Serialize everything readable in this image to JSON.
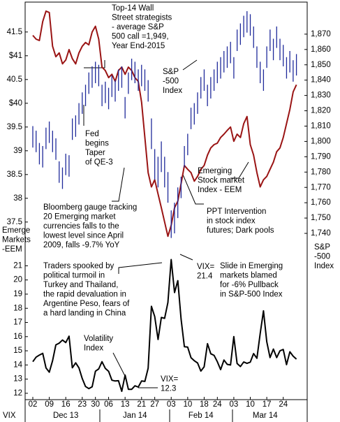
{
  "chart_data": [
    {
      "type": "combo",
      "ylabel": [
        "Emerge",
        "Markets",
        "-EEM"
      ],
      "y2label": [
        "S&P",
        "-500",
        "Index"
      ],
      "ylim": [
        37.1,
        42.1
      ],
      "yticks": [
        37.5,
        38,
        38.5,
        39,
        39.5,
        {
          "value": 40,
          "label": "$40"
        },
        40.5,
        {
          "value": 41,
          "label": "$41"
        },
        41.5
      ],
      "y2lim": [
        1735,
        1890
      ],
      "y2ticks": [
        {
          "value": 1740,
          "label": "1,740"
        },
        {
          "value": 1750,
          "label": "1,750"
        },
        {
          "value": 1760,
          "label": "1,760"
        },
        {
          "value": 1770,
          "label": "1,770"
        },
        {
          "value": 1780,
          "label": "1,780"
        },
        {
          "value": 1790,
          "label": "1,790"
        },
        {
          "value": 1800,
          "label": "1,800"
        },
        {
          "value": 1810,
          "label": "1,810"
        },
        {
          "value": 1820,
          "label": "1,820"
        },
        {
          "value": 1830,
          "label": "1,830"
        },
        {
          "value": 1840,
          "label": "1,840"
        },
        {
          "value": 1850,
          "label": "1,850"
        },
        {
          "value": 1860,
          "label": "1,860"
        },
        {
          "value": 1870,
          "label": "1,870"
        }
      ],
      "series": [
        {
          "name": [
            "Emerging",
            "Stock market",
            "Index - EEM"
          ],
          "type": "line",
          "color": "#9a1414",
          "values": [
            41.43,
            41.35,
            41.32,
            41.72,
            41.94,
            41.91,
            41.2,
            40.98,
            41.06,
            40.83,
            40.91,
            41.13,
            40.94,
            40.83,
            41.06,
            41.2,
            41.28,
            41.23,
            41.5,
            41.62,
            41.35,
            40.76,
            40.69,
            40.54,
            40.61,
            40.46,
            40.69,
            40.76,
            40.61,
            40.76,
            40.69,
            40.54,
            40.46,
            40.02,
            39.28,
            38.54,
            38.24,
            38.39,
            38.09,
            37.8,
            37.5,
            37.2,
            37.43,
            37.8,
            37.94,
            38.31,
            38.69,
            38.61,
            38.54,
            38.36,
            38.46,
            38.61,
            38.69,
            38.91,
            39.06,
            39.13,
            39.16,
            39.28,
            39.35,
            39.43,
            39.5,
            39.2,
            39.35,
            39.28,
            39.57,
            39.72,
            39.13,
            38.91,
            38.54,
            38.24,
            38.39,
            38.46,
            38.61,
            38.76,
            38.98,
            39.06,
            39.28,
            39.57,
            39.87,
            40.24,
            40.39
          ]
        },
        {
          "name": [
            "S&P",
            "-500",
            "Index"
          ],
          "type": "hl",
          "axis": "y2",
          "color": "#1f2a9a",
          "high": [
            1810,
            1807,
            1799,
            1797,
            1809,
            1813,
            1807,
            1802,
            1787,
            1783,
            1792,
            1791,
            1815,
            1817,
            1825,
            1832,
            1837,
            1845,
            1849,
            1852,
            1850,
            1837,
            1839,
            1835,
            1843,
            1840,
            1847,
            1849,
            1829,
            1845,
            1854,
            1852,
            1847,
            1850,
            1847,
            1840,
            1815,
            1795,
            1790,
            1800,
            1790,
            1780,
            1755,
            1760,
            1770,
            1777,
            1797,
            1805,
            1822,
            1825,
            1832,
            1842,
            1847,
            1837,
            1842,
            1847,
            1852,
            1855,
            1859,
            1862,
            1865,
            1855,
            1873,
            1877,
            1882,
            1885,
            1883,
            1875,
            1862,
            1852,
            1847,
            1862,
            1873,
            1867,
            1875,
            1867,
            1863,
            1855,
            1859,
            1853,
            1857
          ],
          "low": [
            1796,
            1793,
            1785,
            1783,
            1795,
            1799,
            1793,
            1788,
            1773,
            1769,
            1778,
            1777,
            1801,
            1803,
            1811,
            1818,
            1823,
            1831,
            1835,
            1838,
            1836,
            1823,
            1825,
            1821,
            1829,
            1826,
            1833,
            1835,
            1815,
            1831,
            1840,
            1838,
            1833,
            1836,
            1833,
            1826,
            1795,
            1775,
            1770,
            1780,
            1770,
            1760,
            1737,
            1740,
            1750,
            1763,
            1783,
            1791,
            1808,
            1811,
            1818,
            1828,
            1833,
            1823,
            1828,
            1833,
            1838,
            1841,
            1845,
            1848,
            1851,
            1841,
            1859,
            1863,
            1868,
            1871,
            1869,
            1861,
            1848,
            1838,
            1833,
            1848,
            1859,
            1853,
            1861,
            1853,
            1849,
            1841,
            1845,
            1839,
            1843
          ]
        }
      ],
      "annotations": [
        [
          "Top-14 Wall",
          "Street strategists",
          "- average S&P",
          "500 call =1,949,",
          "Year End-2015"
        ],
        [
          "Fed",
          "begins",
          "Taper",
          "of QE-3"
        ],
        [
          "Bloomberg gauge tracking",
          "20 Emerging market",
          "currencies falls to the",
          "lowest level since April",
          "2009, falls -9.7% YoY"
        ],
        [
          "PPT Intervention",
          "in stock index",
          "futures; Dark pools"
        ]
      ]
    },
    {
      "type": "line",
      "xlabel": "VIX",
      "categories": [
        "02",
        null,
        null,
        null,
        null,
        "09",
        null,
        null,
        null,
        null,
        "16",
        null,
        null,
        null,
        null,
        "23",
        null,
        null,
        null,
        "30",
        null,
        null,
        null,
        "06",
        null,
        null,
        null,
        null,
        "13",
        null,
        null,
        null,
        null,
        "21",
        null,
        null,
        null,
        "27",
        null,
        null,
        null,
        null,
        "03",
        null,
        null,
        null,
        null,
        "10",
        null,
        null,
        null,
        null,
        "18",
        null,
        null,
        null,
        "24",
        null,
        null,
        null,
        null,
        "03",
        null,
        null,
        null,
        null,
        "10",
        null,
        null,
        null,
        null,
        "17",
        null,
        null,
        null,
        null,
        "24",
        null,
        null,
        null,
        null
      ],
      "months": [
        "Dec 13",
        "Jan 14",
        "Feb 14",
        "Mar 14"
      ],
      "ylim": [
        11.65,
        22.5
      ],
      "yticks": [
        12,
        13,
        14,
        15,
        16,
        17,
        18,
        19,
        20,
        21
      ],
      "series": [
        {
          "name": [
            "Volatility",
            "Index"
          ],
          "color": "#000000",
          "values": [
            14.23,
            14.55,
            14.7,
            14.82,
            13.79,
            13.49,
            14.3,
            15.42,
            15.54,
            15.76,
            15.58,
            16.03,
            13.8,
            14.15,
            13.79,
            13.04,
            12.48,
            12.33,
            12.46,
            13.56,
            13.72,
            14.23,
            13.76,
            13.55,
            12.92,
            12.87,
            12.89,
            12.14,
            13.28,
            12.28,
            12.28,
            12.53,
            12.44,
            12.87,
            12.84,
            13.77,
            18.14,
            17.42,
            15.8,
            17.35,
            17.29,
            18.41,
            21.44,
            19.11,
            19.95,
            17.23,
            15.29,
            15.26,
            14.51,
            14.3,
            14.14,
            13.57,
            13.87,
            15.5,
            14.79,
            14.68,
            14.23,
            13.67,
            14.35,
            14.04,
            14.0,
            16.0,
            14.1,
            13.89,
            14.21,
            14.11,
            14.2,
            14.8,
            14.47,
            16.22,
            17.82,
            15.64,
            14.52,
            15.12,
            14.52,
            15.0,
            15.09,
            14.02,
            14.93,
            14.62,
            14.41
          ]
        }
      ],
      "annotations": [
        [
          "Traders spooked by",
          "political turmoil in",
          "Turkey and Thailand,",
          "the rapid devaluation in",
          "Argentine Peso, fears of",
          "a hard landing in China"
        ],
        [
          "VIX=",
          "21.4"
        ],
        [
          "Slide in Emerging",
          "markets blamed",
          "for -6% Pullback",
          "in S&P-500 Index"
        ],
        [
          "VIX=",
          "12.3"
        ]
      ]
    }
  ]
}
